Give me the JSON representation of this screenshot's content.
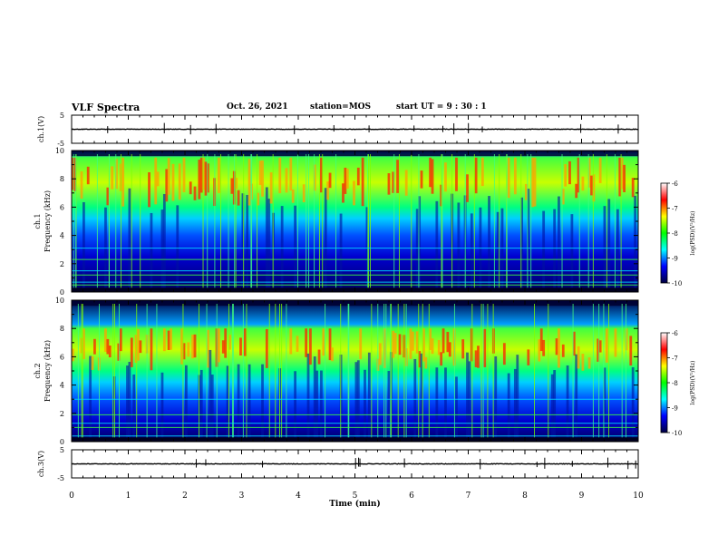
{
  "header": {
    "title": "VLF Spectra",
    "date": "Oct. 26, 2021",
    "station": "station=MOS",
    "start": "start  UT =  9 : 30 : 1"
  },
  "chart_data": [
    {
      "type": "line",
      "ylabel": "ch.1(V)",
      "xlim": [
        0,
        10
      ],
      "ylim": [
        -5,
        5
      ],
      "ytick_labels": [
        "5",
        "-5"
      ],
      "baseline": 0
    },
    {
      "type": "heatmap",
      "ylabel": "ch.1\nFrequency (kHz)",
      "xlim": [
        0,
        10
      ],
      "ylim": [
        0,
        10
      ],
      "ytick_labels": [
        "0",
        "2",
        "4",
        "6",
        "8",
        "10"
      ],
      "intense_band_khz": [
        6,
        9.5
      ],
      "colorbar": {
        "label": "log(PSD)(V²/Hz)",
        "range": [
          -10,
          -6
        ],
        "tick_labels": [
          "-6",
          "-7",
          "-8",
          "-9",
          "-10"
        ],
        "colors": [
          "#000040",
          "#0000ff",
          "#00ffff",
          "#00ff00",
          "#ffff00",
          "#ff0000",
          "#ffffff"
        ]
      }
    },
    {
      "type": "heatmap",
      "ylabel": "ch.2\nFrequency (kHz)",
      "xlim": [
        0,
        10
      ],
      "ylim": [
        0,
        10
      ],
      "ytick_labels": [
        "0",
        "2",
        "4",
        "6",
        "8",
        "10"
      ],
      "intense_band_khz": [
        5,
        8
      ],
      "colorbar": {
        "label": "log(PSD)(V²/Hz)",
        "range": [
          -10,
          -6
        ],
        "tick_labels": [
          "-6",
          "-7",
          "-8",
          "-9",
          "-10"
        ],
        "colors": [
          "#000040",
          "#0000ff",
          "#00ffff",
          "#00ff00",
          "#ffff00",
          "#ff0000",
          "#ffffff"
        ]
      }
    },
    {
      "type": "line",
      "ylabel": "ch.3(V)",
      "xlim": [
        0,
        10
      ],
      "ylim": [
        -5,
        5
      ],
      "ytick_labels": [
        "5",
        "-5"
      ],
      "baseline": 0,
      "xlabel": "Time (min)",
      "xtick_labels": [
        "0",
        "1",
        "2",
        "3",
        "4",
        "5",
        "6",
        "7",
        "8",
        "9",
        "10"
      ]
    }
  ]
}
